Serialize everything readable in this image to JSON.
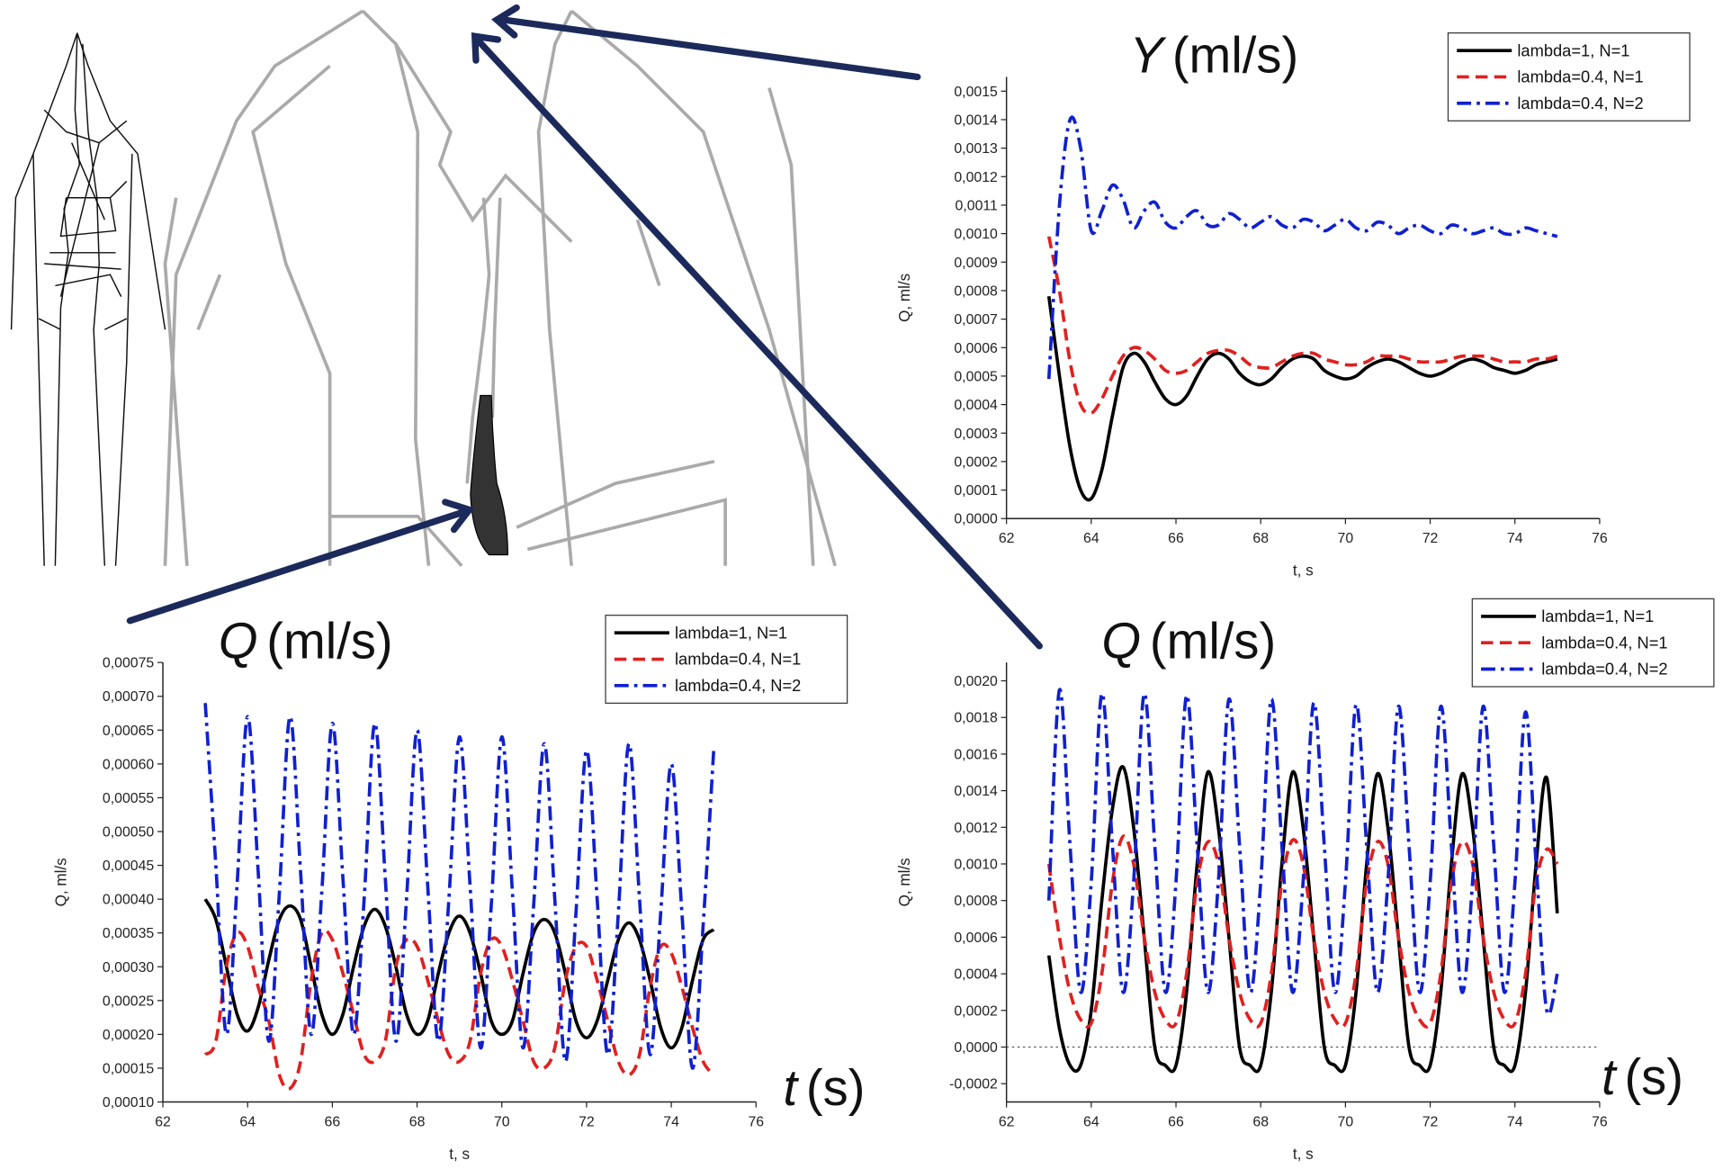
{
  "chart_data": [
    {
      "type": "line",
      "annotation": {
        "symbol": "Y",
        "unit": "(ml/s)"
      },
      "xlabel": "t, s",
      "ylabel": "Q, ml/s",
      "xlim": [
        62,
        76
      ],
      "xticks": [
        62,
        64,
        66,
        68,
        70,
        72,
        74,
        76
      ],
      "ylim": [
        0,
        0.00155
      ],
      "yticks": [
        {
          "value": 0,
          "label": "0,0000"
        },
        {
          "value": 0.0001,
          "label": "0,0001"
        },
        {
          "value": 0.0002,
          "label": "0,0002"
        },
        {
          "value": 0.0003,
          "label": "0,0003"
        },
        {
          "value": 0.0004,
          "label": "0,0004"
        },
        {
          "value": 0.0005,
          "label": "0,0005"
        },
        {
          "value": 0.0006,
          "label": "0,0006"
        },
        {
          "value": 0.0007,
          "label": "0,0007"
        },
        {
          "value": 0.0008,
          "label": "0,0008"
        },
        {
          "value": 0.0009,
          "label": "0,0009"
        },
        {
          "value": 0.001,
          "label": "0,0010"
        },
        {
          "value": 0.0011,
          "label": "0,0011"
        },
        {
          "value": 0.0012,
          "label": "0,0012"
        },
        {
          "value": 0.0013,
          "label": "0,0013"
        },
        {
          "value": 0.0014,
          "label": "0,0014"
        },
        {
          "value": 0.0015,
          "label": "0,0015"
        }
      ],
      "legend": "upper-right",
      "x": [
        63,
        63.25,
        63.5,
        63.75,
        64,
        64.25,
        64.5,
        64.75,
        65,
        65.25,
        65.5,
        65.75,
        66,
        66.25,
        66.5,
        66.75,
        67,
        67.25,
        67.5,
        67.75,
        68,
        68.25,
        68.5,
        68.75,
        69,
        69.25,
        69.5,
        69.75,
        70,
        70.25,
        70.5,
        70.75,
        71,
        71.25,
        71.5,
        71.75,
        72,
        72.25,
        72.5,
        72.75,
        73,
        73.25,
        73.5,
        73.75,
        74,
        74.25,
        74.5,
        74.75,
        75
      ],
      "series": [
        {
          "name": "lambda=1, N=1",
          "color": "#000000",
          "dash": "solid",
          "values": [
            0.00078,
            0.0005,
            0.00025,
            0.0001,
            7e-05,
            0.00017,
            0.00036,
            0.00053,
            0.00058,
            0.00055,
            0.00048,
            0.00042,
            0.0004,
            0.00043,
            0.0005,
            0.00056,
            0.00058,
            0.00056,
            0.00051,
            0.00048,
            0.00047,
            0.00049,
            0.00053,
            0.00056,
            0.00057,
            0.00056,
            0.00052,
            0.0005,
            0.00049,
            0.0005,
            0.00053,
            0.00055,
            0.00056,
            0.00055,
            0.00053,
            0.00051,
            0.0005,
            0.00051,
            0.00053,
            0.00055,
            0.00056,
            0.00055,
            0.00053,
            0.00052,
            0.00051,
            0.00052,
            0.00054,
            0.00055,
            0.00056
          ]
        },
        {
          "name": "lambda=0.4, N=1",
          "color": "#e02020",
          "dash": "dash",
          "values": [
            0.00099,
            0.0008,
            0.00055,
            0.0004,
            0.00037,
            0.00042,
            0.0005,
            0.00057,
            0.0006,
            0.00059,
            0.00056,
            0.00052,
            0.00051,
            0.00052,
            0.00055,
            0.00058,
            0.00059,
            0.00059,
            0.00057,
            0.00054,
            0.00053,
            0.00053,
            0.00055,
            0.00057,
            0.00058,
            0.00058,
            0.00056,
            0.00055,
            0.00054,
            0.00054,
            0.00055,
            0.00057,
            0.00057,
            0.00057,
            0.00056,
            0.00055,
            0.00055,
            0.00055,
            0.00056,
            0.00057,
            0.00057,
            0.00057,
            0.00056,
            0.00055,
            0.00055,
            0.00055,
            0.00056,
            0.00056,
            0.00057
          ]
        },
        {
          "name": "lambda=0.4, N=2",
          "color": "#1020d0",
          "dash": "dashdot",
          "values": [
            0.00049,
            0.0011,
            0.0014,
            0.0013,
            0.00101,
            0.00108,
            0.00117,
            0.00112,
            0.00102,
            0.00108,
            0.00111,
            0.00104,
            0.00102,
            0.00106,
            0.00108,
            0.00103,
            0.00103,
            0.00107,
            0.00105,
            0.00102,
            0.00104,
            0.00106,
            0.00103,
            0.00102,
            0.00105,
            0.00104,
            0.00101,
            0.00103,
            0.00105,
            0.00102,
            0.00101,
            0.00104,
            0.00103,
            0.001,
            0.00102,
            0.00103,
            0.00101,
            0.001,
            0.00103,
            0.00102,
            0.001,
            0.00101,
            0.00102,
            0.001,
            0.001,
            0.00102,
            0.00101,
            0.001,
            0.00099
          ]
        }
      ]
    },
    {
      "type": "line",
      "annotation": {
        "symbol": "Q",
        "unit": "(ml/s)"
      },
      "x_annotation": {
        "symbol": "t",
        "unit": "(s)"
      },
      "xlabel": "t, s",
      "ylabel": "Q, ml/s",
      "xlim": [
        62,
        76
      ],
      "xticks": [
        62,
        64,
        66,
        68,
        70,
        72,
        74,
        76
      ],
      "ylim": [
        0.0001,
        0.00075
      ],
      "yticks": [
        {
          "value": 0.0001,
          "label": "0,00010"
        },
        {
          "value": 0.00015,
          "label": "0,00015"
        },
        {
          "value": 0.0002,
          "label": "0,00020"
        },
        {
          "value": 0.00025,
          "label": "0,00025"
        },
        {
          "value": 0.0003,
          "label": "0,00030"
        },
        {
          "value": 0.00035,
          "label": "0,00035"
        },
        {
          "value": 0.0004,
          "label": "0,00040"
        },
        {
          "value": 0.00045,
          "label": "0,00045"
        },
        {
          "value": 0.0005,
          "label": "0,00050"
        },
        {
          "value": 0.00055,
          "label": "0,00055"
        },
        {
          "value": 0.0006,
          "label": "0,00060"
        },
        {
          "value": 0.00065,
          "label": "0,00065"
        },
        {
          "value": 0.0007,
          "label": "0,00070"
        },
        {
          "value": 0.00075,
          "label": "0,00075"
        }
      ],
      "legend": "upper-right",
      "x": [
        63,
        63.25,
        63.5,
        63.75,
        64,
        64.25,
        64.5,
        64.75,
        65,
        65.25,
        65.5,
        65.75,
        66,
        66.25,
        66.5,
        66.75,
        67,
        67.25,
        67.5,
        67.75,
        68,
        68.25,
        68.5,
        68.75,
        69,
        69.25,
        69.5,
        69.75,
        70,
        70.25,
        70.5,
        70.75,
        71,
        71.25,
        71.5,
        71.75,
        72,
        72.25,
        72.5,
        72.75,
        73,
        73.25,
        73.5,
        73.75,
        74,
        74.25,
        74.5,
        74.75,
        75
      ],
      "series": [
        {
          "name": "lambda=1, N=1",
          "color": "#000000",
          "dash": "solid",
          "values": [
            0.0004,
            0.00037,
            0.0003,
            0.00023,
            0.000205,
            0.00024,
            0.00031,
            0.00037,
            0.00039,
            0.00037,
            0.0003,
            0.00023,
            0.0002,
            0.00023,
            0.0003,
            0.00036,
            0.000385,
            0.00036,
            0.0003,
            0.00023,
            0.0002,
            0.00022,
            0.00029,
            0.00035,
            0.000375,
            0.00035,
            0.00029,
            0.00022,
            0.0002,
            0.00022,
            0.00029,
            0.00035,
            0.00037,
            0.00035,
            0.00029,
            0.00022,
            0.000195,
            0.00022,
            0.00028,
            0.00034,
            0.000365,
            0.00034,
            0.00028,
            0.00021,
            0.00018,
            0.00021,
            0.00028,
            0.00034,
            0.000355
          ]
        },
        {
          "name": "lambda=0.4, N=1",
          "color": "#e02020",
          "dash": "dash",
          "values": [
            0.00017,
            0.00019,
            0.0003,
            0.00035,
            0.00033,
            0.00027,
            0.00022,
            0.00014,
            0.00012,
            0.00016,
            0.00028,
            0.00035,
            0.00034,
            0.00029,
            0.00023,
            0.00017,
            0.00016,
            0.00019,
            0.0003,
            0.00034,
            0.00033,
            0.00028,
            0.00022,
            0.00017,
            0.00016,
            0.00019,
            0.00029,
            0.00034,
            0.00033,
            0.00028,
            0.00022,
            0.00016,
            0.00015,
            0.00018,
            0.00028,
            0.00033,
            0.00033,
            0.00028,
            0.00022,
            0.00016,
            0.00014,
            0.00017,
            0.00027,
            0.00033,
            0.00032,
            0.00027,
            0.00021,
            0.00016,
            0.00014
          ]
        },
        {
          "name": "lambda=0.4, N=2",
          "color": "#1020d0",
          "dash": "dashdot",
          "values": [
            0.00069,
            0.00045,
            0.0002,
            0.00042,
            0.00067,
            0.00044,
            0.00019,
            0.00041,
            0.00067,
            0.00044,
            0.0002,
            0.00041,
            0.00066,
            0.00043,
            0.0002,
            0.0004,
            0.00066,
            0.00043,
            0.00019,
            0.0004,
            0.00065,
            0.00042,
            0.00019,
            0.0004,
            0.00064,
            0.00042,
            0.00018,
            0.00039,
            0.00064,
            0.00041,
            0.00018,
            0.00039,
            0.00063,
            0.0004,
            0.00016,
            0.00038,
            0.00062,
            0.0004,
            0.00017,
            0.00038,
            0.00063,
            0.0004,
            0.00017,
            0.00038,
            0.0006,
            0.00038,
            0.00015,
            0.00036,
            0.00062
          ]
        }
      ]
    },
    {
      "type": "line",
      "annotation": {
        "symbol": "Q",
        "unit": "(ml/s)"
      },
      "x_annotation": {
        "symbol": "t",
        "unit": "(s)"
      },
      "xlabel": "t, s",
      "ylabel": "Q, ml/s",
      "xlim": [
        62,
        76
      ],
      "xticks": [
        62,
        64,
        66,
        68,
        70,
        72,
        74,
        76
      ],
      "ylim": [
        -0.0003,
        0.0021
      ],
      "yticks": [
        {
          "value": -0.0002,
          "label": "-0,0002"
        },
        {
          "value": 0,
          "label": "0,0000"
        },
        {
          "value": 0.0002,
          "label": "0,0002"
        },
        {
          "value": 0.0004,
          "label": "0,0004"
        },
        {
          "value": 0.0006,
          "label": "0,0006"
        },
        {
          "value": 0.0008,
          "label": "0,0008"
        },
        {
          "value": 0.001,
          "label": "0,0010"
        },
        {
          "value": 0.0012,
          "label": "0,0012"
        },
        {
          "value": 0.0014,
          "label": "0,0014"
        },
        {
          "value": 0.0016,
          "label": "0,0016"
        },
        {
          "value": 0.0018,
          "label": "0,0018"
        },
        {
          "value": 0.002,
          "label": "0,0020"
        }
      ],
      "zero_line": true,
      "legend": "upper-right",
      "x": [
        63,
        63.25,
        63.5,
        63.75,
        64,
        64.25,
        64.5,
        64.75,
        65,
        65.25,
        65.5,
        65.75,
        66,
        66.25,
        66.5,
        66.75,
        67,
        67.25,
        67.5,
        67.75,
        68,
        68.25,
        68.5,
        68.75,
        69,
        69.25,
        69.5,
        69.75,
        70,
        70.25,
        70.5,
        70.75,
        71,
        71.25,
        71.5,
        71.75,
        72,
        72.25,
        72.5,
        72.75,
        73,
        73.25,
        73.5,
        73.75,
        74,
        74.25,
        74.5,
        74.75,
        75
      ],
      "series": [
        {
          "name": "lambda=1, N=1",
          "color": "#000000",
          "dash": "solid",
          "values": [
            0.0005,
            0.0001,
            -0.0001,
            -0.0001,
            0.0002,
            0.0008,
            0.0013,
            0.00153,
            0.0012,
            0.0006,
            0,
            -0.0001,
            -0.0001,
            0.0003,
            0.001,
            0.0015,
            0.0012,
            0.0006,
            0,
            -0.0001,
            -0.0001,
            0.0003,
            0.001,
            0.0015,
            0.0012,
            0.0006,
            0,
            -0.0001,
            -0.0001,
            0.0003,
            0.001,
            0.00149,
            0.0012,
            0.0006,
            0,
            -0.0001,
            -0.0001,
            0.0003,
            0.001,
            0.00149,
            0.0012,
            0.0006,
            0,
            -0.0001,
            -0.0001,
            0.0003,
            0.001,
            0.00147,
            0.00073
          ]
        },
        {
          "name": "lambda=0.4, N=1",
          "color": "#e02020",
          "dash": "dash",
          "values": [
            0.001,
            0.0006,
            0.0003,
            0.00015,
            0.00013,
            0.0004,
            0.0009,
            0.00115,
            0.001,
            0.0006,
            0.0003,
            0.00015,
            0.00013,
            0.0004,
            0.0009,
            0.00112,
            0.001,
            0.0006,
            0.0003,
            0.00015,
            0.00013,
            0.0004,
            0.0009,
            0.00113,
            0.001,
            0.0006,
            0.0003,
            0.00015,
            0.00013,
            0.0004,
            0.0009,
            0.00112,
            0.001,
            0.0006,
            0.0003,
            0.00015,
            0.00013,
            0.0004,
            0.0009,
            0.00112,
            0.001,
            0.0006,
            0.0003,
            0.00015,
            0.00013,
            0.0004,
            0.0009,
            0.00108,
            0.001
          ]
        },
        {
          "name": "lambda=0.4, N=2",
          "color": "#1020d0",
          "dash": "dashdot",
          "values": [
            0.0008,
            0.00195,
            0.0011,
            0.0003,
            0.0009,
            0.00193,
            0.0011,
            0.0003,
            0.0009,
            0.00193,
            0.0011,
            0.0003,
            0.0009,
            0.00192,
            0.0011,
            0.0003,
            0.0009,
            0.0019,
            0.0011,
            0.0003,
            0.0009,
            0.0019,
            0.0011,
            0.0003,
            0.0009,
            0.00188,
            0.0011,
            0.0003,
            0.0009,
            0.00187,
            0.0011,
            0.0003,
            0.0009,
            0.00186,
            0.0011,
            0.0003,
            0.0009,
            0.00186,
            0.0011,
            0.0003,
            0.0009,
            0.00186,
            0.0011,
            0.0003,
            0.0009,
            0.00183,
            0.001,
            0.0002,
            0.0004
          ]
        }
      ]
    }
  ]
}
